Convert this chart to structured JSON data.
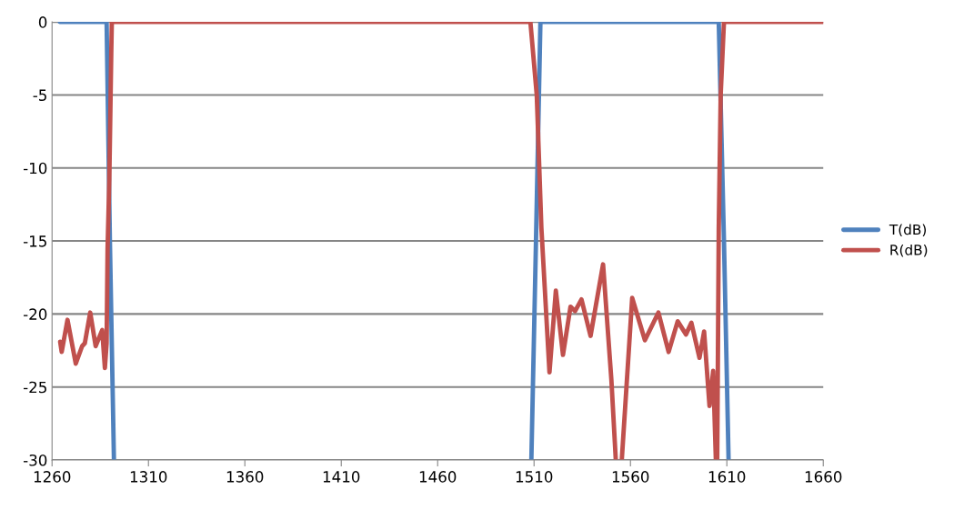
{
  "chart_data": {
    "type": "line",
    "xlim": [
      1260,
      1660
    ],
    "xticks": [
      1260,
      1310,
      1360,
      1410,
      1460,
      1510,
      1560,
      1610,
      1660
    ],
    "ylim": [
      -30,
      0
    ],
    "yticks": [
      {
        "value": 0,
        "label": "0"
      },
      {
        "value": -5,
        "label": "-5"
      },
      {
        "value": -10,
        "label": "-10"
      },
      {
        "value": -15,
        "label": "-15"
      },
      {
        "value": -20,
        "label": "-20"
      },
      {
        "value": -25,
        "label": "-25"
      },
      {
        "value": -30,
        "label": "-30"
      }
    ],
    "grid": "y",
    "legend": "right",
    "marker": "none",
    "line_style": "solid",
    "series": [
      {
        "name": "T(dB)",
        "color": "#4f81bd",
        "x": [
          1264,
          1288.3,
          1290,
          1292.1,
          1300,
          1508.6,
          1511,
          1513.3,
          1560,
          1605.8,
          1608.5,
          1610.9
        ],
        "values": [
          0,
          0,
          -15,
          -30,
          null,
          -30,
          -15,
          0,
          0,
          0,
          -15,
          -30
        ]
      },
      {
        "name": "R(dB)",
        "color": "#c0504d",
        "x": [
          1264.2,
          1265,
          1268,
          1272.3,
          1275.6,
          1277,
          1279.8,
          1282.6,
          1286,
          1287.4,
          1288.3,
          1288.8,
          1289.7,
          1290.7,
          1291,
          1400,
          1508.1,
          1511.4,
          1513.8,
          1518,
          1521.3,
          1525,
          1528.9,
          1531.3,
          1534.6,
          1539.3,
          1545.8,
          1550.1,
          1552.4,
          1554,
          1555.5,
          1560.9,
          1567.5,
          1574.5,
          1579.8,
          1584.5,
          1588.8,
          1591.6,
          1595.8,
          1598.2,
          1601,
          1602.9,
          1604.3,
          1604.6,
          1605,
          1605.8,
          1606.8,
          1608.5,
          1660
        ],
        "values": [
          -21.9,
          -22.6,
          -20.4,
          -23.4,
          -22.2,
          -22.0,
          -19.9,
          -22.2,
          -21.1,
          -23.7,
          -22.0,
          -15.5,
          -10.8,
          -2.2,
          0,
          0,
          0,
          -5,
          -14.1,
          -24.0,
          -18.4,
          -22.8,
          -19.5,
          -19.8,
          -19.0,
          -21.5,
          -16.6,
          -24.5,
          -30,
          null,
          -30,
          -18.9,
          -21.8,
          -19.9,
          -22.6,
          -20.5,
          -21.4,
          -20.6,
          -23.0,
          -21.2,
          -26.3,
          -23.9,
          -30,
          null,
          -30,
          -14.1,
          -5,
          0,
          0
        ]
      }
    ]
  }
}
